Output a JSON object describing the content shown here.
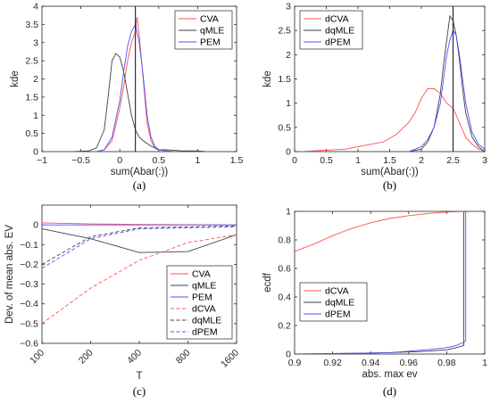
{
  "chart_data": [
    {
      "panel": "a",
      "type": "line",
      "caption": "(a)",
      "xlabel": "sum(Abar(:))",
      "ylabel": "kde",
      "xlim": [
        -1,
        1.5
      ],
      "ylim": [
        0,
        4
      ],
      "xticks": [
        -1,
        -0.5,
        0,
        0.5,
        1,
        1.5
      ],
      "xticklabels": [
        "−1",
        "−0.5",
        "0",
        "0.5",
        "1",
        "1.5"
      ],
      "yticks": [
        0,
        0.5,
        1,
        1.5,
        2,
        2.5,
        3,
        3.5,
        4
      ],
      "yticklabels": [
        "0",
        "0.5",
        "1",
        "1.5",
        "2",
        "2.5",
        "3",
        "3.5",
        "4"
      ],
      "legend_position": "top-right",
      "vline": 0.2,
      "grid": false,
      "series": [
        {
          "name": "CVA",
          "color": "#ff5050",
          "dash": "solid",
          "x": [
            -0.3,
            -0.2,
            -0.1,
            0,
            0.05,
            0.1,
            0.15,
            0.2,
            0.22,
            0.25,
            0.3,
            0.35,
            0.4,
            0.45,
            0.5,
            0.6,
            0.7
          ],
          "y": [
            0,
            0.05,
            0.3,
            1.2,
            1.8,
            2.5,
            3.0,
            3.3,
            3.7,
            3.2,
            2.0,
            0.8,
            0.3,
            0.1,
            0.05,
            0.02,
            0
          ]
        },
        {
          "name": "qMLE",
          "color": "#404040",
          "dash": "solid",
          "x": [
            -0.6,
            -0.4,
            -0.3,
            -0.2,
            -0.15,
            -0.1,
            -0.05,
            0,
            0.05,
            0.1,
            0.15,
            0.2,
            0.25,
            0.3,
            0.4,
            0.5,
            0.6,
            0.8,
            1.0,
            1.1
          ],
          "y": [
            0,
            0.02,
            0.1,
            0.6,
            1.5,
            2.5,
            2.7,
            2.6,
            2.2,
            1.6,
            1.0,
            0.6,
            0.4,
            0.3,
            0.15,
            0.05,
            0.05,
            0.02,
            0.02,
            0
          ]
        },
        {
          "name": "PEM",
          "color": "#5050ff",
          "dash": "solid",
          "x": [
            -0.3,
            -0.2,
            -0.1,
            0,
            0.05,
            0.1,
            0.15,
            0.2,
            0.25,
            0.3,
            0.35,
            0.4,
            0.45,
            0.5,
            0.6,
            0.7
          ],
          "y": [
            0,
            0.05,
            0.4,
            1.4,
            2.2,
            2.9,
            3.3,
            3.5,
            3.0,
            2.1,
            1.0,
            0.4,
            0.15,
            0.05,
            0.02,
            0
          ]
        }
      ]
    },
    {
      "panel": "b",
      "type": "line",
      "caption": "(b)",
      "xlabel": "sum(Abar(:))",
      "ylabel": "kde",
      "xlim": [
        0,
        3
      ],
      "ylim": [
        0,
        3
      ],
      "xticks": [
        0,
        0.5,
        1,
        1.5,
        2,
        2.5,
        3
      ],
      "xticklabels": [
        "0",
        "0.5",
        "1",
        "1.5",
        "2",
        "2.5",
        "3"
      ],
      "yticks": [
        0,
        0.5,
        1,
        1.5,
        2,
        2.5,
        3
      ],
      "yticklabels": [
        "0",
        "0.5",
        "1",
        "1.5",
        "2",
        "2.5",
        "3"
      ],
      "legend_position": "top-left",
      "vline": 2.5,
      "grid": false,
      "series": [
        {
          "name": "dCVA",
          "color": "#ff5050",
          "dash": "solid",
          "x": [
            0.1,
            0.5,
            0.8,
            1.0,
            1.2,
            1.4,
            1.6,
            1.8,
            1.9,
            2.0,
            2.1,
            2.2,
            2.3,
            2.4,
            2.5,
            2.6,
            2.7,
            2.8,
            2.9,
            3.0
          ],
          "y": [
            0,
            0.03,
            0.05,
            0.1,
            0.15,
            0.2,
            0.35,
            0.6,
            0.8,
            1.1,
            1.3,
            1.3,
            1.2,
            1.0,
            0.9,
            0.6,
            0.3,
            0.15,
            0.05,
            0.02
          ]
        },
        {
          "name": "dqMLE",
          "color": "#404040",
          "dash": "solid",
          "x": [
            1.8,
            2.0,
            2.1,
            2.2,
            2.3,
            2.35,
            2.4,
            2.45,
            2.5,
            2.55,
            2.6,
            2.65,
            2.7,
            2.8,
            2.9,
            3.0
          ],
          "y": [
            0,
            0.05,
            0.2,
            0.5,
            1.2,
            1.8,
            2.3,
            2.8,
            2.7,
            2.4,
            1.9,
            1.3,
            0.8,
            0.3,
            0.1,
            0
          ]
        },
        {
          "name": "dPEM",
          "color": "#5050ff",
          "dash": "solid",
          "x": [
            1.8,
            2.0,
            2.1,
            2.2,
            2.3,
            2.35,
            2.4,
            2.45,
            2.5,
            2.55,
            2.6,
            2.65,
            2.7,
            2.8,
            2.9,
            3.0
          ],
          "y": [
            0,
            0.1,
            0.25,
            0.5,
            1.0,
            1.5,
            2.0,
            2.3,
            2.5,
            2.4,
            2.0,
            1.5,
            1.0,
            0.4,
            0.15,
            0.05
          ]
        }
      ]
    },
    {
      "panel": "c",
      "type": "line",
      "caption": "(c)",
      "xlabel": "T",
      "ylabel": "Dev. of mean abs. EV",
      "xlim": [
        100,
        1600
      ],
      "ylim": [
        -0.6,
        0.1
      ],
      "xticks": [
        100,
        200,
        400,
        800,
        1600
      ],
      "xticklabels": [
        "100",
        "200",
        "400",
        "800",
        "1600"
      ],
      "yticks": [
        -0.6,
        -0.5,
        -0.4,
        -0.3,
        -0.2,
        -0.1,
        0
      ],
      "yticklabels": [
        "−0.6",
        "−0.5",
        "−0.4",
        "−0.3",
        "−0.2",
        "−0.1",
        "0"
      ],
      "legend_position": "bottom-right",
      "grid": false,
      "series": [
        {
          "name": "CVA",
          "color": "#ff5050",
          "dash": "solid",
          "x": [
            100,
            200,
            400,
            800,
            1600
          ],
          "y": [
            0.01,
            0.005,
            0.002,
            0.001,
            0.0
          ]
        },
        {
          "name": "qMLE",
          "color": "#404040",
          "dash": "solid",
          "x": [
            100,
            200,
            400,
            800,
            1600
          ],
          "y": [
            -0.02,
            -0.07,
            -0.14,
            -0.135,
            -0.05
          ]
        },
        {
          "name": "PEM",
          "color": "#5050ff",
          "dash": "solid",
          "x": [
            100,
            200,
            400,
            800,
            1600
          ],
          "y": [
            0.0,
            0.0,
            0.0,
            0.0,
            0.0
          ]
        },
        {
          "name": "dCVA",
          "color": "#ff5050",
          "dash": "dashed",
          "x": [
            100,
            200,
            400,
            800,
            1600
          ],
          "y": [
            -0.5,
            -0.32,
            -0.18,
            -0.09,
            -0.05
          ]
        },
        {
          "name": "dqMLE",
          "color": "#404040",
          "dash": "dashed",
          "x": [
            100,
            200,
            400,
            800,
            1600
          ],
          "y": [
            -0.2,
            -0.06,
            -0.015,
            -0.01,
            -0.005
          ]
        },
        {
          "name": "dPEM",
          "color": "#5050ff",
          "dash": "dashed",
          "x": [
            100,
            200,
            400,
            800,
            1600
          ],
          "y": [
            -0.22,
            -0.07,
            -0.02,
            -0.015,
            -0.01
          ]
        }
      ]
    },
    {
      "panel": "d",
      "type": "line",
      "caption": "(d)",
      "xlabel": "abs. max ev",
      "ylabel": "ecdf",
      "xlim": [
        0.9,
        1
      ],
      "ylim": [
        0,
        1
      ],
      "xticks": [
        0.9,
        0.92,
        0.94,
        0.96,
        0.98,
        1
      ],
      "xticklabels": [
        "0.9",
        "0.92",
        "0.94",
        "0.96",
        "0.98",
        "1"
      ],
      "yticks": [
        0,
        0.2,
        0.4,
        0.6,
        0.8,
        1
      ],
      "yticklabels": [
        "0",
        "0.2",
        "0.4",
        "0.6",
        "0.8",
        "1"
      ],
      "legend_position": "middle-left",
      "grid": false,
      "series": [
        {
          "name": "dCVA",
          "color": "#ff5050",
          "dash": "solid",
          "x": [
            0.9,
            0.91,
            0.92,
            0.93,
            0.94,
            0.95,
            0.96,
            0.97,
            0.98,
            0.99
          ],
          "y": [
            0.72,
            0.77,
            0.83,
            0.88,
            0.92,
            0.95,
            0.97,
            0.985,
            0.995,
            1.0
          ]
        },
        {
          "name": "dqMLE",
          "color": "#404040",
          "dash": "solid",
          "x": [
            0.9,
            0.93,
            0.95,
            0.97,
            0.98,
            0.985,
            0.989,
            0.989,
            0.991
          ],
          "y": [
            0.0,
            0.005,
            0.01,
            0.02,
            0.03,
            0.045,
            0.06,
            1.0,
            1.0
          ]
        },
        {
          "name": "dPEM",
          "color": "#5050ff",
          "dash": "solid",
          "x": [
            0.9,
            0.93,
            0.95,
            0.97,
            0.98,
            0.985,
            0.99,
            0.99
          ],
          "y": [
            0.0,
            0.005,
            0.01,
            0.03,
            0.045,
            0.06,
            0.09,
            1.0
          ]
        }
      ]
    }
  ]
}
